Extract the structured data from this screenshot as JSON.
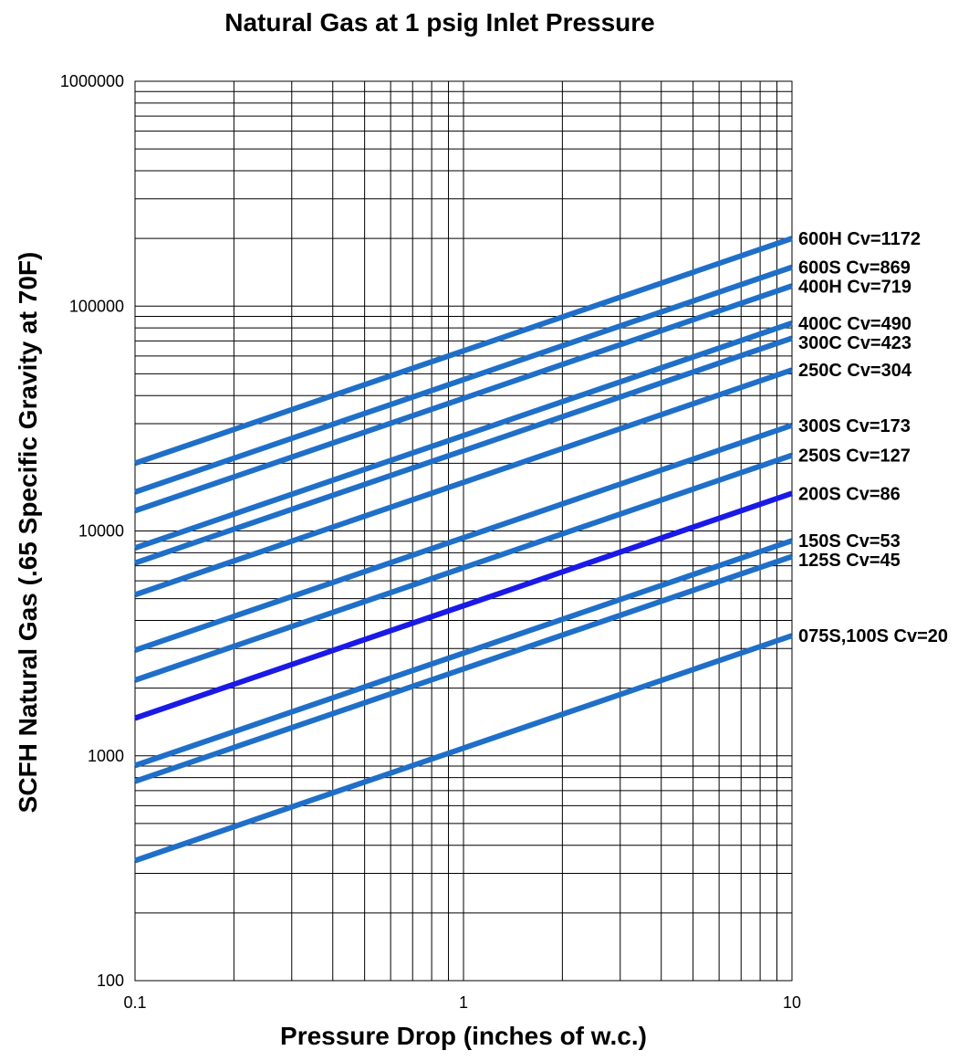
{
  "chart_data": {
    "type": "line",
    "title": "Natural Gas at 1 psig Inlet Pressure",
    "xlabel": "Pressure Drop (inches of w.c.)",
    "ylabel": "SCFH Natural Gas (.65 Specific Gravity at 70F)",
    "x_scale": "log",
    "y_scale": "log",
    "xlim": [
      0.1,
      10
    ],
    "ylim": [
      100,
      1000000
    ],
    "x_tick_labels": [
      "0.1",
      "1",
      "10"
    ],
    "y_tick_labels": [
      "100",
      "1000",
      "10000",
      "100000",
      "1000000"
    ],
    "grid": true,
    "legend": "labels at right end of lines",
    "series": [
      {
        "name": "600H Cv=1172",
        "x": [
          0.1,
          10
        ],
        "y": [
          20000,
          200000
        ],
        "color": "#1f6fc9"
      },
      {
        "name": "600S Cv=869",
        "x": [
          0.1,
          10
        ],
        "y": [
          14900,
          149000
        ],
        "color": "#1f6fc9"
      },
      {
        "name": "400H Cv=719",
        "x": [
          0.1,
          10
        ],
        "y": [
          12300,
          123000
        ],
        "color": "#1f6fc9"
      },
      {
        "name": "400C Cv=490",
        "x": [
          0.1,
          10
        ],
        "y": [
          8400,
          84000
        ],
        "color": "#1f6fc9"
      },
      {
        "name": "300C Cv=423",
        "x": [
          0.1,
          10
        ],
        "y": [
          7200,
          72000
        ],
        "color": "#1f6fc9"
      },
      {
        "name": "250C Cv=304",
        "x": [
          0.1,
          10
        ],
        "y": [
          5200,
          52000
        ],
        "color": "#1f6fc9"
      },
      {
        "name": "300S Cv=173",
        "x": [
          0.1,
          10
        ],
        "y": [
          2950,
          29500
        ],
        "color": "#1f6fc9"
      },
      {
        "name": "250S Cv=127",
        "x": [
          0.1,
          10
        ],
        "y": [
          2170,
          21700
        ],
        "color": "#1f6fc9"
      },
      {
        "name": "200S Cv=86",
        "x": [
          0.1,
          10
        ],
        "y": [
          1470,
          14700
        ],
        "color": "#1a1ae6"
      },
      {
        "name": "150S Cv=53",
        "x": [
          0.1,
          10
        ],
        "y": [
          905,
          9050
        ],
        "color": "#1f6fc9"
      },
      {
        "name": "125S Cv=45",
        "x": [
          0.1,
          10
        ],
        "y": [
          770,
          7700
        ],
        "color": "#1f6fc9"
      },
      {
        "name": "075S,100S Cv=20",
        "x": [
          0.1,
          10
        ],
        "y": [
          342,
          3420
        ],
        "color": "#1f6fc9"
      }
    ]
  }
}
